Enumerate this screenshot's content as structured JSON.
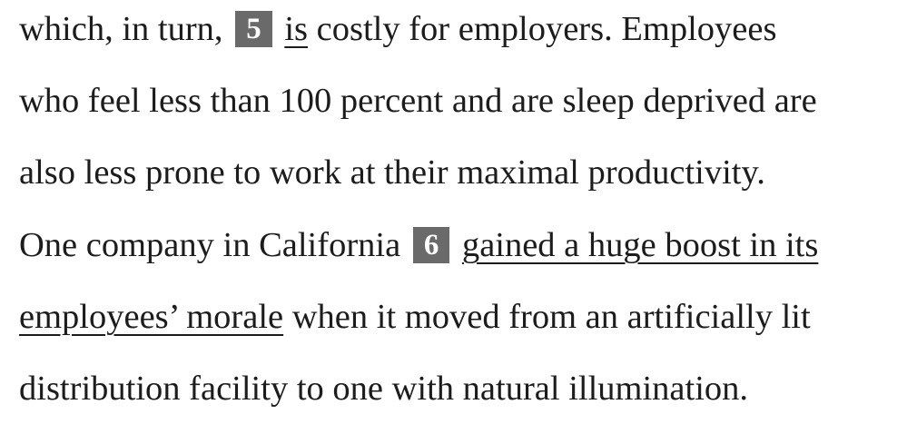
{
  "passage": {
    "line1": {
      "pre": "which, in turn,",
      "question_number": "5",
      "underlined": "is",
      "post": "costly for employers. Employees"
    },
    "line2": "who feel less than 100 percent and are sleep deprived are",
    "line3": "also less prone to work at their maximal productivity.",
    "line4": {
      "pre": "One company in California",
      "question_number": "6",
      "underlined": "gained a huge boost in its"
    },
    "line5": {
      "underlined": "employees’ morale",
      "post": "when it moved from an artificially lit"
    },
    "line6": "distribution facility to one with natural illumination."
  },
  "colors": {
    "question_box": "#6a6a6a",
    "text": "#1c1c1c",
    "background": "#ffffff"
  }
}
